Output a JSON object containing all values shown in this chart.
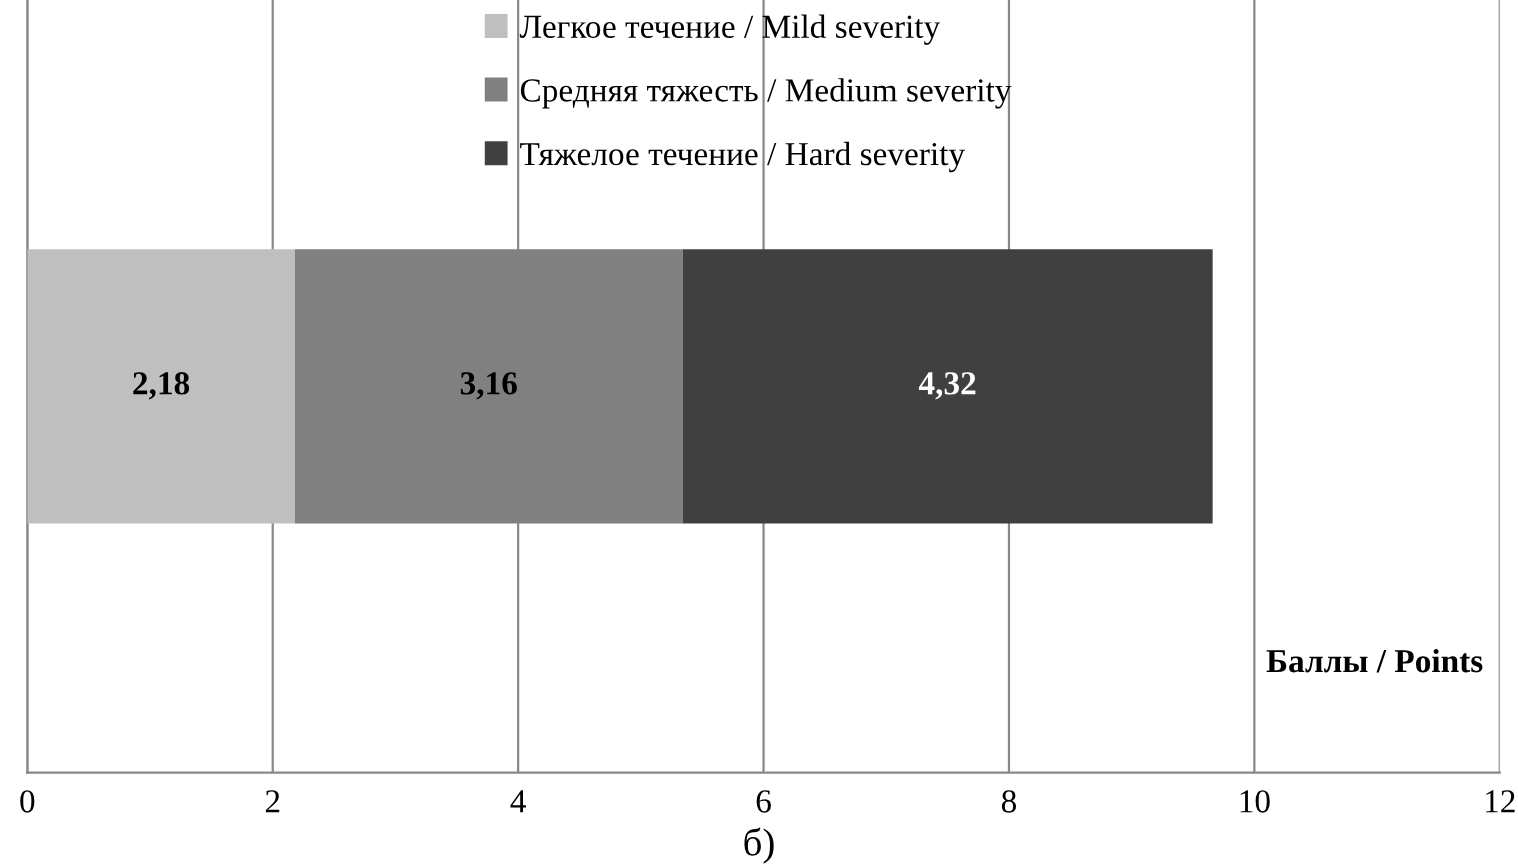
{
  "chart_data": {
    "type": "bar",
    "orientation": "horizontal",
    "stacked": true,
    "categories": [
      null
    ],
    "series": [
      {
        "name": "Легкое течение / Mild severity",
        "color": "#bfbfbf",
        "values": [
          2.18
        ],
        "value_labels": [
          "2,18"
        ]
      },
      {
        "name": "Средняя тяжесть / Medium severity",
        "color": "#808080",
        "values": [
          3.16
        ],
        "value_labels": [
          "3,16"
        ]
      },
      {
        "name": "Тяжелое течение / Hard severity",
        "color": "#404040",
        "values": [
          4.32
        ],
        "value_labels": [
          "4,32"
        ]
      }
    ],
    "xlabel": "Баллы / Points",
    "xlim": [
      0,
      12
    ],
    "xticks": [
      0,
      2,
      4,
      6,
      8,
      10,
      12
    ],
    "grid": "x",
    "legend": "top",
    "annotations": [
      "б)"
    ]
  }
}
